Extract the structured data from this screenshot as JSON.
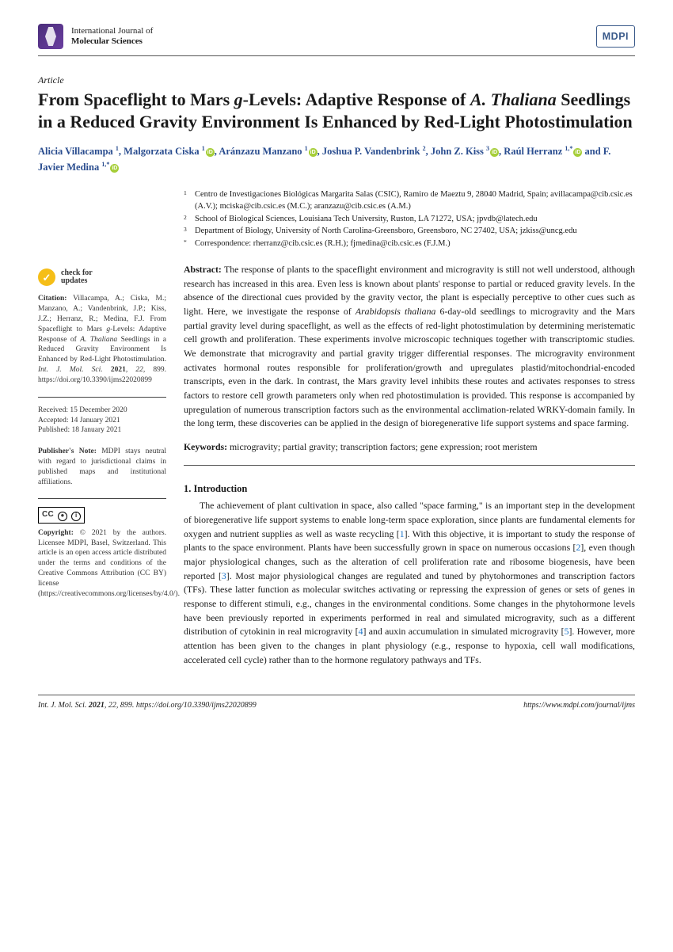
{
  "journal": {
    "line1": "International Journal of",
    "line2": "Molecular Sciences"
  },
  "publisher_badge": "MDPI",
  "article_type": "Article",
  "title_html": "From Spaceflight to Mars <em>g</em>-Levels: Adaptive Response of <em>A. Thaliana</em> Seedlings in a Reduced Gravity Environment Is Enhanced by Red-Light Photostimulation",
  "authors": [
    {
      "name": "Alicia Villacampa",
      "sup": "1",
      "orcid": false,
      "sep": ","
    },
    {
      "name": "Malgorzata Ciska",
      "sup": "1",
      "orcid": true,
      "sep": ","
    },
    {
      "name": "Aránzazu Manzano",
      "sup": "1",
      "orcid": true,
      "sep": ","
    },
    {
      "name": "Joshua P. Vandenbrink",
      "sup": "2",
      "orcid": false,
      "sep": ","
    },
    {
      "name": "John Z. Kiss",
      "sup": "3",
      "orcid": true,
      "sep": ","
    },
    {
      "name": "Raúl Herranz",
      "sup": "1,*",
      "orcid": true,
      "sep": ""
    },
    {
      "name": "F. Javier Medina",
      "sup": "1,*",
      "orcid": true,
      "sep": "",
      "prefix": " and "
    }
  ],
  "affiliations": [
    {
      "marker": "1",
      "text": "Centro de Investigaciones Biológicas Margarita Salas (CSIC), Ramiro de Maeztu 9, 28040 Madrid, Spain; avillacampa@cib.csic.es (A.V.); mciska@cib.csic.es (M.C.); aranzazu@cib.csic.es (A.M.)"
    },
    {
      "marker": "2",
      "text": "School of Biological Sciences, Louisiana Tech University, Ruston, LA 71272, USA; jpvdb@latech.edu"
    },
    {
      "marker": "3",
      "text": "Department of Biology, University of North Carolina-Greensboro, Greensboro, NC 27402, USA; jzkiss@uncg.edu"
    },
    {
      "marker": "*",
      "text": "Correspondence: rherranz@cib.csic.es (R.H.); fjmedina@cib.csic.es (F.J.M.)"
    }
  ],
  "abstract_label": "Abstract:",
  "abstract_body_html": "The response of plants to the spaceflight environment and microgravity is still not well understood, although research has increased in this area. Even less is known about plants' response to partial or reduced gravity levels. In the absence of the directional cues provided by the gravity vector, the plant is especially perceptive to other cues such as light. Here, we investigate the response of <em>Arabidopsis thaliana</em> 6-day-old seedlings to microgravity and the Mars partial gravity level during spaceflight, as well as the effects of red-light photostimulation by determining meristematic cell growth and proliferation. These experiments involve microscopic techniques together with transcriptomic studies. We demonstrate that microgravity and partial gravity trigger differential responses. The microgravity environment activates hormonal routes responsible for proliferation/growth and upregulates plastid/mitochondrial-encoded transcripts, even in the dark. In contrast, the Mars gravity level inhibits these routes and activates responses to stress factors to restore cell growth parameters only when red photostimulation is provided. This response is accompanied by upregulation of numerous transcription factors such as the environmental acclimation-related WRKY-domain family. In the long term, these discoveries can be applied in the design of bioregenerative life support systems and space farming.",
  "keywords_label": "Keywords:",
  "keywords_text": "microgravity; partial gravity; transcription factors; gene expression; root meristem",
  "sidebar": {
    "updates_label": "check for\nupdates",
    "citation_label": "Citation:",
    "citation_text_html": "Villacampa, A.; Ciska, M.; Manzano, A.; Vandenbrink, J.P.; Kiss, J.Z.; Herranz, R.; Medina, F.J. From Spaceflight to Mars <em>g</em>-Levels: Adaptive Response of <em>A. Thaliana</em> Seedlings in a Reduced Gravity Environment Is Enhanced by Red-Light Photostimulation. <em>Int. J. Mol. Sci.</em> <strong>2021</strong>, <em>22</em>, 899. https://doi.org/10.3390/ijms22020899",
    "received": "Received: 15 December 2020",
    "accepted": "Accepted: 14 January 2021",
    "published": "Published: 18 January 2021",
    "pubnote_label": "Publisher's Note:",
    "pubnote_text": "MDPI stays neutral with regard to jurisdictional claims in published maps and institutional affiliations.",
    "copyright_label": "Copyright:",
    "copyright_text": "© 2021 by the authors. Licensee MDPI, Basel, Switzerland. This article is an open access article distributed under the terms and conditions of the Creative Commons Attribution (CC BY) license (https://creativecommons.org/licenses/by/4.0/)."
  },
  "section1_head": "1. Introduction",
  "section1_para_html": "The achievement of plant cultivation in space, also called \"space farming,\" is an important step in the development of bioregenerative life support systems to enable long-term space exploration, since plants are fundamental elements for oxygen and nutrient supplies as well as waste recycling [<span class=\"ref\">1</span>]. With this objective, it is important to study the response of plants to the space environment. Plants have been successfully grown in space on numerous occasions [<span class=\"ref\">2</span>], even though major physiological changes, such as the alteration of cell proliferation rate and ribosome biogenesis, have been reported [<span class=\"ref\">3</span>]. Most major physiological changes are regulated and tuned by phytohormones and transcription factors (TFs). These latter function as molecular switches activating or repressing the expression of genes or sets of genes in response to different stimuli, e.g., changes in the environmental conditions. Some changes in the phytohormone levels have been previously reported in experiments performed in real and simulated microgravity, such as a different distribution of cytokinin in real microgravity [<span class=\"ref\">4</span>] and auxin accumulation in simulated microgravity [<span class=\"ref\">5</span>]. However, more attention has been given to the changes in plant physiology (e.g., response to hypoxia, cell wall modifications, accelerated cell cycle) rather than to the hormone regulatory pathways and TFs.",
  "footer": {
    "left_html": "<em>Int. J. Mol. Sci.</em> <strong>2021</strong>, <em>22</em>, 899. https://doi.org/10.3390/ijms22020899",
    "right": "https://www.mdpi.com/journal/ijms"
  },
  "colors": {
    "author_link": "#2a4d8f",
    "orcid_green": "#a6ce39",
    "updates_yellow": "#f5be18",
    "ref_blue": "#1a73c9",
    "mdpi_border": "#3a5a8a"
  }
}
